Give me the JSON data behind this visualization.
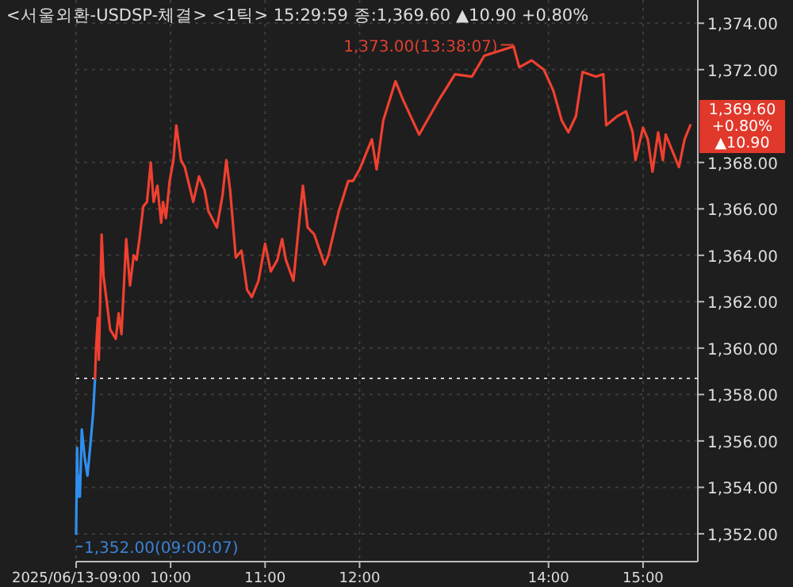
{
  "chart_data": {
    "type": "line",
    "title": "<서울외환-USDSP-체결> <1틱> 15:29:59 종:1,369.60 ▲10.90 +0.80%",
    "series": [
      {
        "color": "#2f8fef",
        "x": [
          9.0,
          9.01,
          9.02,
          9.03,
          9.04,
          9.06,
          9.09,
          9.12,
          9.15,
          9.18,
          9.2
        ],
        "values": [
          1352.0,
          1355.7,
          1353.6,
          1354.5,
          1353.6,
          1356.5,
          1355.3,
          1354.5,
          1355.8,
          1357.2,
          1358.7
        ]
      },
      {
        "color": "#f04030",
        "x": [
          9.2,
          9.21,
          9.23,
          9.24,
          9.27,
          9.29,
          9.33,
          9.36,
          9.42,
          9.45,
          9.48,
          9.53,
          9.57,
          9.61,
          9.64,
          9.67,
          9.71,
          9.75,
          9.79,
          9.82,
          9.86,
          9.9,
          9.92,
          9.95,
          9.99,
          10.03,
          10.06,
          10.11,
          10.15,
          10.24,
          10.3,
          10.36,
          10.4,
          10.49,
          10.55,
          10.59,
          10.63,
          10.69,
          10.75,
          10.81,
          10.86,
          10.93,
          11.0,
          11.06,
          11.13,
          11.18,
          11.22,
          11.3,
          11.36,
          11.4,
          11.45,
          11.52,
          11.63,
          11.67,
          11.78,
          11.88,
          11.93,
          12.0,
          12.13,
          12.18,
          12.25,
          12.38,
          12.46,
          12.63,
          12.84,
          13.01,
          13.19,
          13.32,
          13.63,
          13.69,
          13.82,
          13.95,
          14.05,
          14.14,
          14.21,
          14.29,
          14.36,
          14.5,
          14.58,
          14.61,
          14.73,
          14.82,
          14.89,
          14.92,
          15.0,
          15.05,
          15.1,
          15.16,
          15.21,
          15.24,
          15.31,
          15.38,
          15.44,
          15.5
        ],
        "values": [
          1358.7,
          1359.9,
          1361.3,
          1359.5,
          1364.9,
          1363.1,
          1361.8,
          1360.8,
          1360.4,
          1361.5,
          1360.6,
          1364.7,
          1362.7,
          1364.0,
          1363.8,
          1364.7,
          1366.1,
          1366.3,
          1368.0,
          1366.3,
          1367.0,
          1365.4,
          1366.3,
          1365.6,
          1367.2,
          1368.1,
          1369.6,
          1368.1,
          1367.8,
          1366.3,
          1367.4,
          1366.8,
          1365.9,
          1365.2,
          1366.6,
          1368.1,
          1366.8,
          1363.9,
          1364.2,
          1362.5,
          1362.2,
          1362.9,
          1364.5,
          1363.3,
          1363.8,
          1364.7,
          1363.8,
          1362.9,
          1365.4,
          1367.0,
          1365.2,
          1364.9,
          1363.6,
          1364.0,
          1365.9,
          1367.2,
          1367.2,
          1367.7,
          1369.0,
          1367.7,
          1369.8,
          1371.5,
          1370.7,
          1369.2,
          1370.7,
          1371.8,
          1371.7,
          1372.6,
          1373.0,
          1372.1,
          1372.4,
          1372.0,
          1371.1,
          1369.8,
          1369.3,
          1370.0,
          1371.9,
          1371.7,
          1371.8,
          1369.6,
          1370.0,
          1370.2,
          1369.3,
          1368.1,
          1369.5,
          1369.0,
          1367.6,
          1369.3,
          1368.1,
          1369.2,
          1368.5,
          1367.8,
          1369.0,
          1369.6
        ]
      }
    ],
    "xlim": [
      9,
      15.58
    ],
    "xticks": [
      {
        "value": 9,
        "label": "2025/06/13-09:00"
      },
      {
        "value": 10,
        "label": "10:00"
      },
      {
        "value": 11,
        "label": "11:00"
      },
      {
        "value": 12,
        "label": "12:00"
      },
      {
        "value": 14,
        "label": "14:00"
      },
      {
        "value": 15,
        "label": "15:00"
      }
    ],
    "ylim": [
      1350.8,
      1375
    ],
    "yticks": [
      {
        "value": 1352,
        "label": "1,352.00"
      },
      {
        "value": 1354,
        "label": "1,354.00"
      },
      {
        "value": 1356,
        "label": "1,356.00"
      },
      {
        "value": 1358,
        "label": "1,358.00"
      },
      {
        "value": 1360,
        "label": "1,360.00"
      },
      {
        "value": 1362,
        "label": "1,362.00"
      },
      {
        "value": 1364,
        "label": "1,364.00"
      },
      {
        "value": 1366,
        "label": "1,366.00"
      },
      {
        "value": 1368,
        "label": "1,368.00"
      },
      {
        "value": 1372,
        "label": "1,372.00"
      },
      {
        "value": 1374,
        "label": "1,374.00"
      }
    ],
    "grid": true,
    "ref_lines": [
      {
        "axis": "y",
        "value": 1358.7,
        "color": "#cccccc",
        "line_style": "dotted"
      }
    ],
    "annotations": [
      {
        "text": "1,373.00(13:38:07)",
        "x": 13.63,
        "y": 1373.0
      },
      {
        "text": "1,352.00(09:00:07)",
        "x": 9.0,
        "y": 1352.0
      },
      {
        "text": "1,369.60\n+0.80%\n▲10.90",
        "x": 15.5,
        "y": 1369.6
      }
    ],
    "line_style": "solid",
    "marker": "none"
  }
}
